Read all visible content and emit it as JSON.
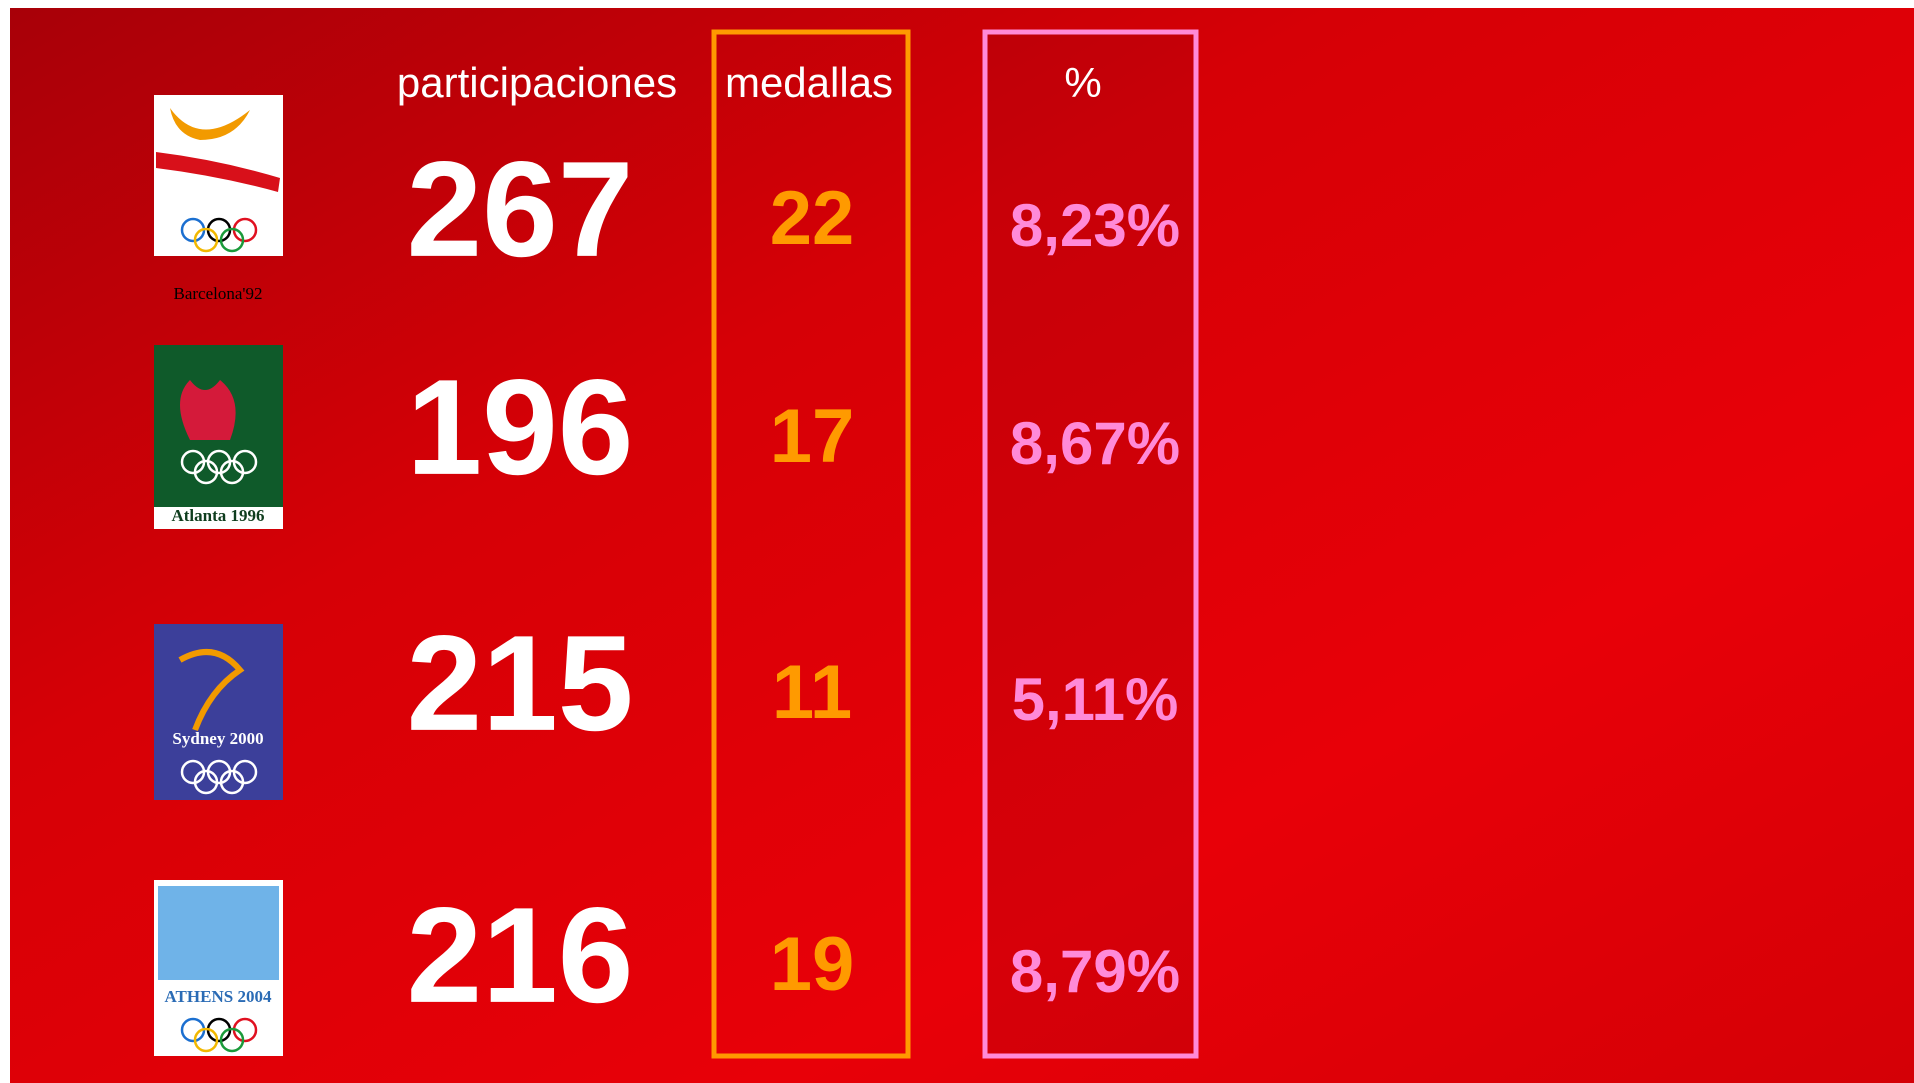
{
  "table": {
    "header": [
      "participaciones",
      "medallas",
      "%"
    ],
    "rows": [
      {
        "logo": "Barcelona'92",
        "participaciones": 267,
        "medallas": 22,
        "porcentaje": "8,23%"
      },
      {
        "logo": "Atlanta 1996",
        "participaciones": 196,
        "medallas": 17,
        "porcentaje": "8,67%"
      },
      {
        "logo": "Sydney 2000",
        "participaciones": 215,
        "medallas": 11,
        "porcentaje": "5,11%"
      },
      {
        "logo": "ATHENS 2004",
        "participaciones": 216,
        "medallas": 19,
        "porcentaje": "8,79%"
      }
    ]
  }
}
